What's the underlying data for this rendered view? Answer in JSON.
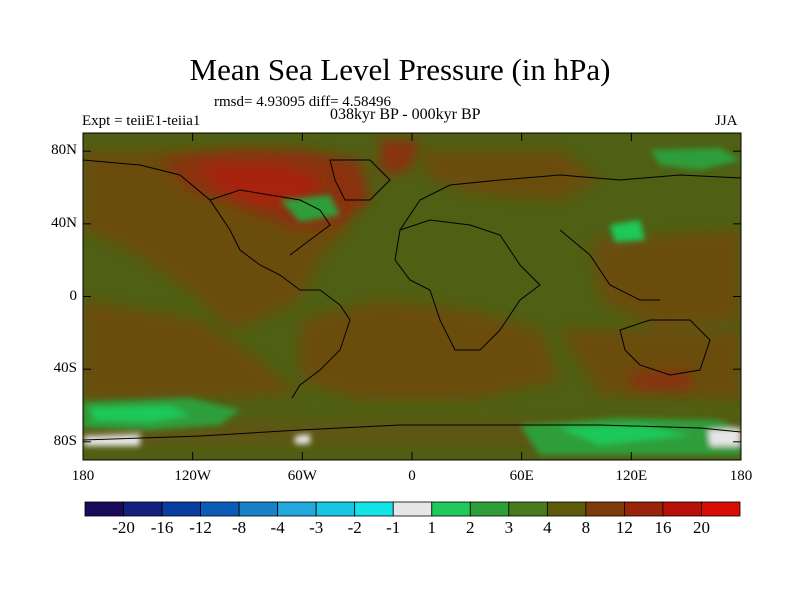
{
  "title": "Mean Sea Level Pressure (in hPa)",
  "stats": "rmsd= 4.93095 diff= 4.58496",
  "subtitle": "038kyr BP - 000kyr BP",
  "left_label": "Expt = teiiE1-teiia1",
  "right_label": "JJA",
  "map": {
    "projection": "cylindrical equidistant",
    "lon_range": [
      -180,
      180
    ],
    "lat_range": [
      -90,
      90
    ],
    "lat_ticks": [
      {
        "value": 80,
        "label": "80N"
      },
      {
        "value": 40,
        "label": "40N"
      },
      {
        "value": 0,
        "label": "0"
      },
      {
        "value": -40,
        "label": "40S"
      },
      {
        "value": -80,
        "label": "80S"
      }
    ],
    "lon_ticks": [
      {
        "value": -180,
        "label": "180"
      },
      {
        "value": -120,
        "label": "120W"
      },
      {
        "value": -60,
        "label": "60W"
      },
      {
        "value": 0,
        "label": "0"
      },
      {
        "value": 60,
        "label": "60E"
      },
      {
        "value": 120,
        "label": "120E"
      },
      {
        "value": 180,
        "label": "180"
      }
    ],
    "background_color": "#4f5f14"
  },
  "colorbar": {
    "labels": [
      "-20",
      "-16",
      "-12",
      "-8",
      "-4",
      "-3",
      "-2",
      "-1",
      "1",
      "2",
      "3",
      "4",
      "8",
      "12",
      "16",
      "20"
    ],
    "colors": [
      "#1a0a5a",
      "#12207e",
      "#0a3da0",
      "#0a5cb6",
      "#1782c8",
      "#22a8dc",
      "#18c6e4",
      "#14e4e8",
      "#e6e6e6",
      "#1fc95a",
      "#2e9e3a",
      "#4a7a1c",
      "#5e5a0c",
      "#7e3c0a",
      "#9a240a",
      "#b81208",
      "#d80e04"
    ]
  }
}
